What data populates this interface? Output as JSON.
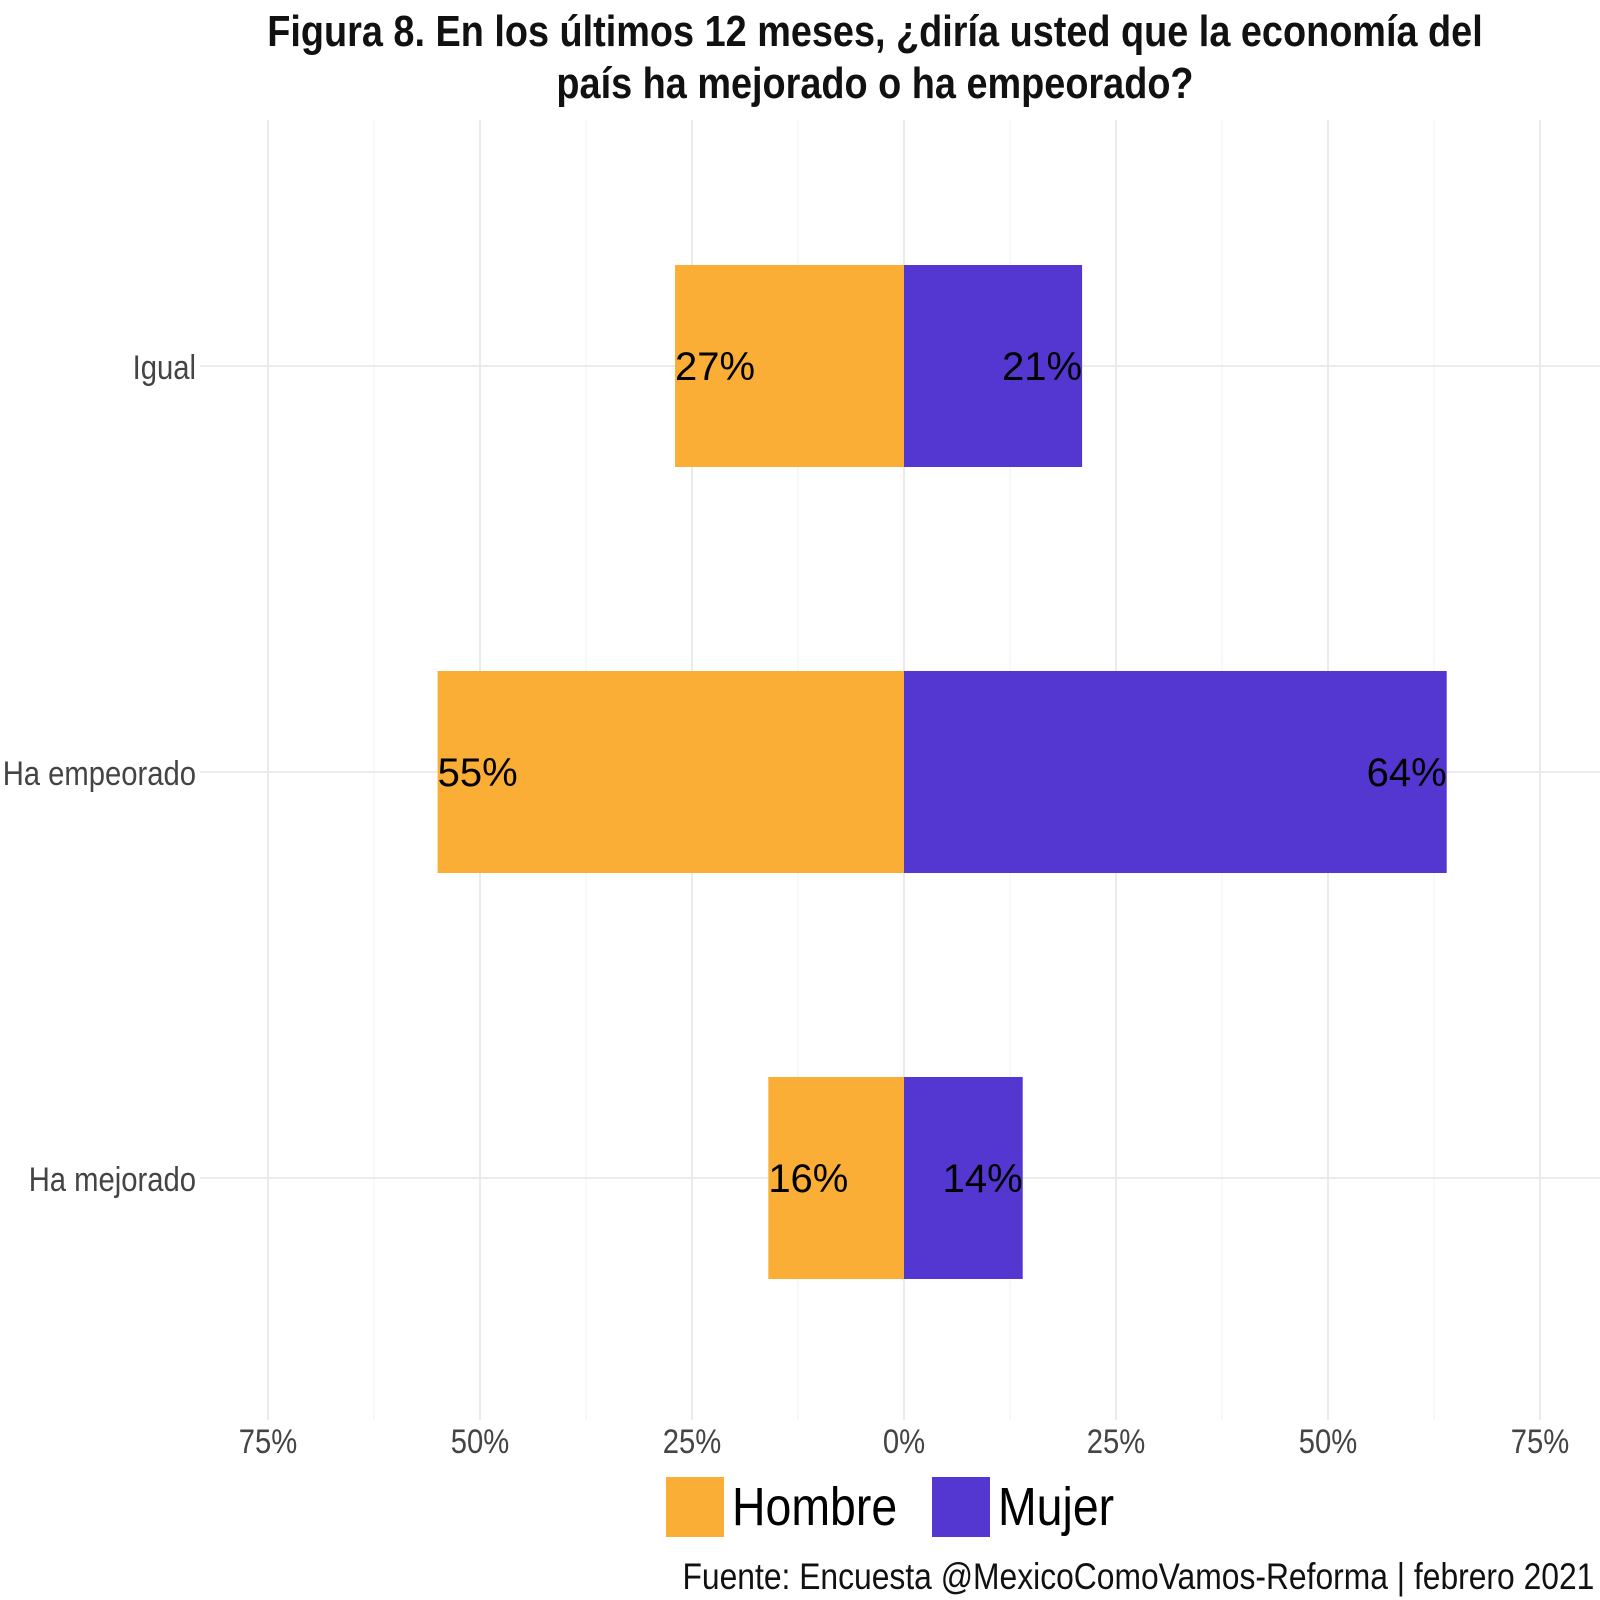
{
  "chart_data": {
    "type": "bar",
    "orientation": "horizontal",
    "diverging": true,
    "title": "Figura 8. En los últimos 12 meses, ¿diría usted que la economía del país ha mejorado o ha empeorado?",
    "title_lines": [
      "Figura 8. En los últimos 12 meses, ¿diría usted que la economía del",
      "país ha mejorado o ha empeorado?"
    ],
    "categories": [
      "Igual",
      "Ha empeorado",
      "Ha mejorado"
    ],
    "series": [
      {
        "name": "Hombre",
        "side": "left",
        "color": "#FBAE35",
        "values": [
          27,
          55,
          16
        ],
        "labels": [
          "27%",
          "55%",
          "16%"
        ]
      },
      {
        "name": "Mujer",
        "side": "right",
        "color": "#5436D1",
        "values": [
          21,
          64,
          14
        ],
        "labels": [
          "21%",
          "64%",
          "14%"
        ]
      }
    ],
    "xlim": [
      -75,
      75
    ],
    "x_ticks": [
      -75,
      -50,
      -25,
      0,
      25,
      50,
      75
    ],
    "x_tick_labels": [
      "75%",
      "50%",
      "25%",
      "0%",
      "25%",
      "50%",
      "75%"
    ],
    "xlabel": "",
    "ylabel": "",
    "grid": true,
    "legend_position": "bottom",
    "source": "Fuente: Encuesta @MexicoComoVamos-Reforma | febrero 2021"
  }
}
